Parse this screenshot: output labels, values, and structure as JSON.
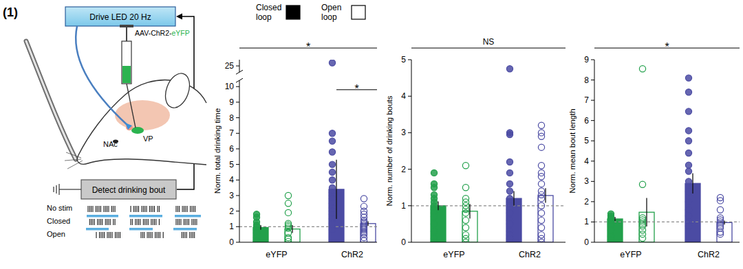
{
  "panel_label": "(1)",
  "schematic": {
    "led_box": "Drive LED 20 Hz",
    "virus": "AAV-ChR2-eYFP",
    "regions": [
      "NAc",
      "VP"
    ],
    "detect_box": "Detect drinking bout",
    "raster_labels": [
      "No stim",
      "Closed",
      "Open"
    ]
  },
  "chart_data": [
    {
      "type": "bar",
      "y_label": "Norm. total drinking time",
      "categories": [
        "eYFP",
        "ChR2"
      ],
      "ylim": [
        0,
        25.4
      ],
      "y_break": [
        10.4,
        24.6
      ],
      "yticks": [
        0,
        1,
        2,
        3,
        4,
        5,
        6,
        7,
        8,
        9,
        10,
        25
      ],
      "reference_line": 1,
      "legend": "top",
      "series": [
        {
          "name": "Closed loop",
          "color": "#000000",
          "colors": [
            "#22a04b",
            "#4b4ba3"
          ],
          "marker": "filled",
          "values": [
            0.95,
            3.4
          ],
          "errors": [
            0.15,
            1.9
          ],
          "points": [
            [
              1.8,
              1.6,
              1.3,
              1.1,
              1.0,
              0.8,
              0.6,
              0.3,
              0.1,
              0.05
            ],
            [
              25.2,
              7.0,
              6.5,
              5.8,
              5.0,
              4.5,
              4.0,
              3.5,
              3.2,
              3.0,
              2.8,
              2.5,
              2.2,
              2.0,
              1.8,
              1.5,
              1.2,
              0.8
            ]
          ]
        },
        {
          "name": "Open loop",
          "color": "#ffffff",
          "colors": [
            "#22a04b",
            "#4b4ba3"
          ],
          "marker": "open",
          "values": [
            0.85,
            1.2
          ],
          "errors": [
            0.25,
            0.15
          ],
          "points": [
            [
              3.0,
              2.5,
              1.9,
              1.2,
              1.1,
              1.0,
              0.9,
              0.6,
              0.3,
              0.2,
              0.05
            ],
            [
              2.8,
              2.3,
              2.0,
              1.8,
              1.6,
              1.4,
              1.3,
              1.2,
              1.1,
              1.0,
              0.9,
              0.8,
              0.7,
              0.6,
              0.5,
              0.3,
              0.1
            ]
          ]
        }
      ],
      "brackets": [
        {
          "text": "*",
          "categories": [
            0,
            1
          ]
        },
        {
          "text": "*",
          "categories": [
            1
          ],
          "y": 9.8
        }
      ]
    },
    {
      "type": "bar",
      "y_label": "Norm. number of drinking bouts",
      "categories": [
        "eYFP",
        "ChR2"
      ],
      "ylim": [
        0,
        5
      ],
      "yticks": [
        0,
        1,
        2,
        3,
        4,
        5
      ],
      "reference_line": 1,
      "series": [
        {
          "colors": [
            "#22a04b",
            "#4b4ba3"
          ],
          "marker": "filled",
          "values": [
            1.0,
            1.2
          ],
          "errors": [
            0.12,
            0.2
          ],
          "points": [
            [
              1.9,
              1.6,
              1.5,
              1.3,
              1.2,
              1.1,
              1.0,
              0.9,
              0.8,
              0.7,
              0.5,
              0.3,
              0.1,
              0.0
            ],
            [
              4.75,
              3.0,
              2.95,
              2.2,
              1.9,
              1.6,
              1.4,
              1.2,
              1.1,
              1.0,
              0.9,
              0.8,
              0.6,
              0.5,
              0.3,
              0.2,
              0.1,
              0.0
            ]
          ]
        },
        {
          "colors": [
            "#22a04b",
            "#4b4ba3"
          ],
          "marker": "open",
          "values": [
            0.85,
            1.28
          ],
          "errors": [
            0.2,
            0.2
          ],
          "points": [
            [
              2.1,
              1.5,
              1.2,
              1.1,
              1.0,
              0.9,
              0.8,
              0.6,
              0.4,
              0.2,
              0.1,
              0.0
            ],
            [
              3.2,
              3.0,
              2.9,
              2.6,
              2.1,
              1.9,
              1.8,
              1.6,
              1.4,
              1.3,
              1.2,
              1.0,
              0.8,
              0.6,
              0.4,
              0.2,
              0.1,
              0.0
            ]
          ]
        }
      ],
      "brackets": [
        {
          "text": "NS",
          "categories": [
            0,
            1
          ]
        }
      ]
    },
    {
      "type": "bar",
      "y_label": "Norm. mean bout length",
      "categories": [
        "eYFP",
        "ChR2"
      ],
      "ylim": [
        0,
        9
      ],
      "yticks": [
        0,
        1,
        2,
        3,
        4,
        5,
        6,
        7,
        8,
        9
      ],
      "reference_line": 1,
      "series": [
        {
          "colors": [
            "#22a04b",
            "#4b4ba3"
          ],
          "marker": "filled",
          "values": [
            1.15,
            2.9
          ],
          "errors": [
            0.1,
            0.5
          ],
          "points": [
            [
              1.4,
              1.3,
              1.2,
              1.1,
              1.0,
              1.0,
              0.9,
              0.8,
              0.6,
              0.3,
              0.1
            ],
            [
              8.1,
              7.4,
              6.45,
              5.5,
              5.0,
              4.4,
              3.8,
              3.5,
              3.0,
              2.5,
              2.0,
              1.6,
              1.3,
              1.0,
              0.8
            ]
          ]
        },
        {
          "colors": [
            "#22a04b",
            "#4b4ba3"
          ],
          "marker": "open",
          "values": [
            1.48,
            0.97
          ],
          "errors": [
            0.7,
            0.1
          ],
          "points": [
            [
              8.55,
              2.85,
              1.2,
              1.1,
              1.0,
              0.9,
              0.8,
              0.6,
              0.4,
              0.2
            ],
            [
              2.2,
              2.05,
              1.6,
              1.2,
              1.1,
              1.0,
              0.9,
              0.8,
              0.7,
              0.5,
              0.4
            ]
          ]
        }
      ],
      "brackets": [
        {
          "text": "*",
          "categories": [
            0,
            1
          ]
        }
      ]
    }
  ]
}
